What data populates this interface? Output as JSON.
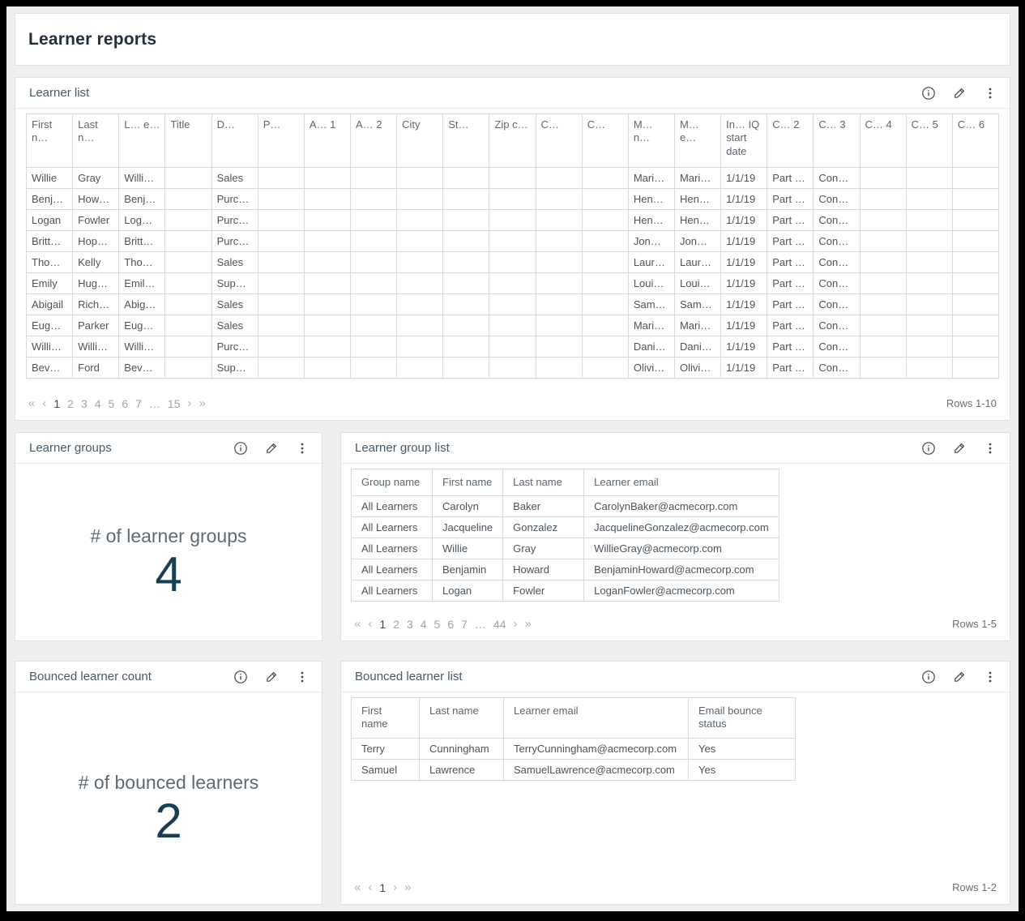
{
  "page": {
    "title": "Learner reports"
  },
  "colors": {
    "accent": "#173f54",
    "panel_title": "#45596a",
    "heading": "#21303c",
    "border": "#d9d9d9"
  },
  "icons": {
    "first": "«",
    "previous": "‹",
    "next": "›",
    "last": "»",
    "panel_icons": [
      "info-icon",
      "edit-icon",
      "menu-icon"
    ]
  },
  "panels": {
    "learner_list": {
      "title": "Learner list",
      "columns": [
        "First n…",
        "Last n…",
        "L… e…",
        "Title",
        "D…",
        "P…",
        "A… 1",
        "A… 2",
        "City",
        "St…",
        "Zip c…",
        "C…",
        "C…",
        "M… n…",
        "M… e…",
        "In… IQ start date",
        "C… 2",
        "C… 3",
        "C… 4",
        "C… 5",
        "C… 6"
      ],
      "rows": [
        [
          "Willie",
          "Gray",
          "Willi…",
          "",
          "Sales",
          "",
          "",
          "",
          "",
          "",
          "",
          "",
          "",
          "Mari…",
          "Mari…",
          "1/1/19",
          "Part …",
          "Con…",
          "",
          "",
          ""
        ],
        [
          "Benj…",
          "How…",
          "Benj…",
          "",
          "Purc…",
          "",
          "",
          "",
          "",
          "",
          "",
          "",
          "",
          "Hen…",
          "Hen…",
          "1/1/19",
          "Part …",
          "Con…",
          "",
          "",
          ""
        ],
        [
          "Logan",
          "Fowler",
          "Log…",
          "",
          "Purc…",
          "",
          "",
          "",
          "",
          "",
          "",
          "",
          "",
          "Hen…",
          "Hen…",
          "1/1/19",
          "Part …",
          "Con…",
          "",
          "",
          ""
        ],
        [
          "Britt…",
          "Hop…",
          "Britt…",
          "",
          "Purc…",
          "",
          "",
          "",
          "",
          "",
          "",
          "",
          "",
          "Jon…",
          "Jon…",
          "1/1/19",
          "Part …",
          "Con…",
          "",
          "",
          ""
        ],
        [
          "Tho…",
          "Kelly",
          "Tho…",
          "",
          "Sales",
          "",
          "",
          "",
          "",
          "",
          "",
          "",
          "",
          "Laur…",
          "Laur…",
          "1/1/19",
          "Part …",
          "Con…",
          "",
          "",
          ""
        ],
        [
          "Emily",
          "Hug…",
          "Emil…",
          "",
          "Sup…",
          "",
          "",
          "",
          "",
          "",
          "",
          "",
          "",
          "Loui…",
          "Loui…",
          "1/1/19",
          "Part …",
          "Con…",
          "",
          "",
          ""
        ],
        [
          "Abigail",
          "Rich…",
          "Abig…",
          "",
          "Sales",
          "",
          "",
          "",
          "",
          "",
          "",
          "",
          "",
          "Sam…",
          "Sam…",
          "1/1/19",
          "Part …",
          "Con…",
          "",
          "",
          ""
        ],
        [
          "Eug…",
          "Parker",
          "Eug…",
          "",
          "Sales",
          "",
          "",
          "",
          "",
          "",
          "",
          "",
          "",
          "Mari…",
          "Mari…",
          "1/1/19",
          "Part …",
          "Con…",
          "",
          "",
          ""
        ],
        [
          "Willi…",
          "Willi…",
          "Willi…",
          "",
          "Purc…",
          "",
          "",
          "",
          "",
          "",
          "",
          "",
          "",
          "Dani…",
          "Dani…",
          "1/1/19",
          "Part …",
          "Con…",
          "",
          "",
          ""
        ],
        [
          "Bev…",
          "Ford",
          "Bev…",
          "",
          "Sup…",
          "",
          "",
          "",
          "",
          "",
          "",
          "",
          "",
          "Olivi…",
          "Olivi…",
          "1/1/19",
          "Part …",
          "Con…",
          "",
          "",
          ""
        ]
      ],
      "pagination": {
        "pages": [
          "1",
          "2",
          "3",
          "4",
          "5",
          "6",
          "7",
          "…",
          "15"
        ],
        "active": "1",
        "rows_label": "Rows 1-10"
      }
    },
    "learner_groups": {
      "title": "Learner groups",
      "metric_label": "# of learner groups",
      "metric_value": "4"
    },
    "learner_group_list": {
      "title": "Learner group list",
      "columns": [
        "Group name",
        "First name",
        "Last name",
        "Learner email"
      ],
      "rows": [
        [
          "All Learners",
          "Carolyn",
          "Baker",
          "CarolynBaker@acmecorp.com"
        ],
        [
          "All Learners",
          "Jacqueline",
          "Gonzalez",
          "JacquelineGonzalez@acmecorp.com"
        ],
        [
          "All Learners",
          "Willie",
          "Gray",
          "WillieGray@acmecorp.com"
        ],
        [
          "All Learners",
          "Benjamin",
          "Howard",
          "BenjaminHoward@acmecorp.com"
        ],
        [
          "All Learners",
          "Logan",
          "Fowler",
          "LoganFowler@acmecorp.com"
        ]
      ],
      "pagination": {
        "pages": [
          "1",
          "2",
          "3",
          "4",
          "5",
          "6",
          "7",
          "…",
          "44"
        ],
        "active": "1",
        "rows_label": "Rows 1-5"
      }
    },
    "bounced_count": {
      "title": "Bounced learner count",
      "metric_label": "# of bounced learners",
      "metric_value": "2"
    },
    "bounced_list": {
      "title": "Bounced learner list",
      "columns": [
        "First name",
        "Last name",
        "Learner email",
        "Email bounce status"
      ],
      "rows": [
        [
          "Terry",
          "Cunningham",
          "TerryCunningham@acmecorp.com",
          "Yes"
        ],
        [
          "Samuel",
          "Lawrence",
          "SamuelLawrence@acmecorp.com",
          "Yes"
        ]
      ],
      "pagination": {
        "pages": [
          "1"
        ],
        "active": "1",
        "rows_label": "Rows 1-2"
      }
    }
  }
}
